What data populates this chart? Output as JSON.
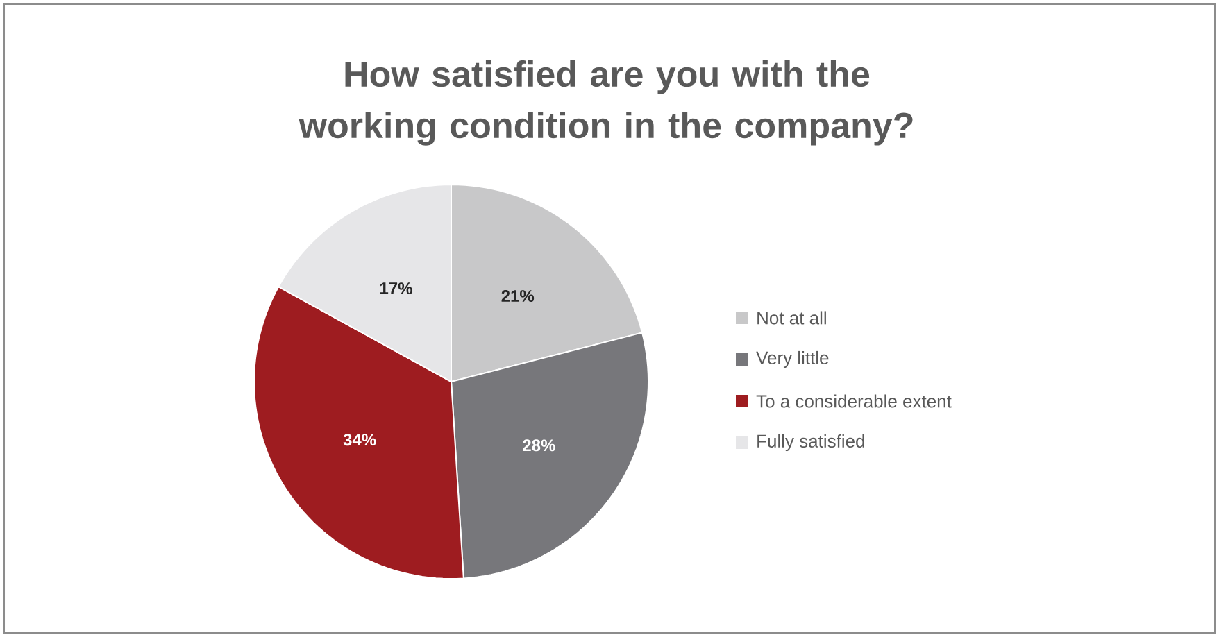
{
  "chart_data": {
    "type": "pie",
    "title": "How satisfied are you with the working condition in the company?",
    "categories": [
      "Not at all",
      "Very little",
      "To a considerable extent",
      "Fully satisfied"
    ],
    "values": [
      21,
      28,
      34,
      17
    ],
    "colors": [
      "#c8c8c9",
      "#77777b",
      "#9e1c20",
      "#e6e6e8"
    ],
    "value_labels": [
      "21%",
      "28%",
      "34%",
      "17%"
    ],
    "legend": "right"
  }
}
